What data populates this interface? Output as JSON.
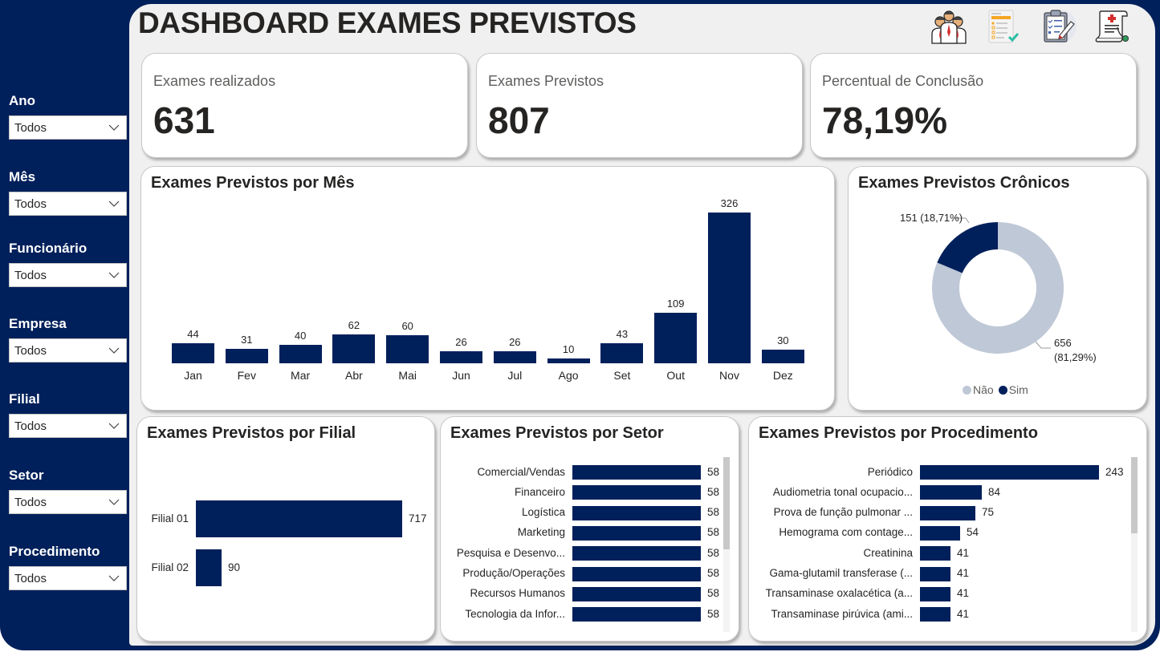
{
  "header": {
    "title": "DASHBOARD EXAMES PREVISTOS"
  },
  "header_icons": [
    "team-icon",
    "checklist-icon",
    "clipboard-edit-icon",
    "medical-report-icon"
  ],
  "filters": [
    {
      "label": "Ano",
      "value": "Todos"
    },
    {
      "label": "Mês",
      "value": "Todos"
    },
    {
      "label": "Funcionário",
      "value": "Todos"
    },
    {
      "label": "Empresa",
      "value": "Todos"
    },
    {
      "label": "Filial",
      "value": "Todos"
    },
    {
      "label": "Setor",
      "value": "Todos"
    },
    {
      "label": "Procedimento",
      "value": "Todos"
    }
  ],
  "kpis": [
    {
      "label": "Exames realizados",
      "value": "631"
    },
    {
      "label": "Exames Previstos",
      "value": "807"
    },
    {
      "label": "Percentual de Conclusão",
      "value": "78,19%"
    }
  ],
  "colors": {
    "primary": "#00205b",
    "secondary": "#bfc8d6",
    "canvas": "#f0f0f0"
  },
  "charts": {
    "mes": {
      "title": "Exames Previstos por Mês"
    },
    "cronicos": {
      "title": "Exames Previstos Crônicos",
      "label_sim": "151 (18,71%)",
      "label_nao_1": "656",
      "label_nao_2": "(81,29%)",
      "legend": [
        "Não",
        "Sim"
      ]
    },
    "filial": {
      "title": "Exames Previstos por Filial"
    },
    "setor": {
      "title": "Exames Previstos por Setor"
    },
    "procedimento": {
      "title": "Exames Previstos por Procedimento"
    }
  },
  "chart_data": [
    {
      "type": "bar",
      "title": "Exames Previstos por Mês",
      "categories": [
        "Jan",
        "Fev",
        "Mar",
        "Abr",
        "Mai",
        "Jun",
        "Jul",
        "Ago",
        "Set",
        "Out",
        "Nov",
        "Dez"
      ],
      "values": [
        44,
        31,
        40,
        62,
        60,
        26,
        26,
        10,
        43,
        109,
        326,
        30
      ],
      "xlabel": "",
      "ylabel": "",
      "grid": false
    },
    {
      "type": "pie",
      "title": "Exames Previstos Crônicos",
      "categories": [
        "Não",
        "Sim"
      ],
      "values": [
        656,
        151
      ],
      "percentages": [
        "81,29%",
        "18,71%"
      ],
      "donut": true,
      "legend_position": "bottom"
    },
    {
      "type": "bar",
      "orientation": "horizontal",
      "title": "Exames Previstos por Filial",
      "categories": [
        "Filial 01",
        "Filial 02"
      ],
      "values": [
        717,
        90
      ]
    },
    {
      "type": "bar",
      "orientation": "horizontal",
      "title": "Exames Previstos por Setor",
      "categories": [
        "Comercial/Vendas",
        "Financeiro",
        "Logística",
        "Marketing",
        "Pesquisa e Desenvo...",
        "Produção/Operações",
        "Recursos Humanos",
        "Tecnologia da Infor..."
      ],
      "values": [
        58,
        58,
        58,
        58,
        58,
        58,
        58,
        58
      ]
    },
    {
      "type": "bar",
      "orientation": "horizontal",
      "title": "Exames Previstos por Procedimento",
      "categories": [
        "Periódico",
        "Audiometria tonal ocupacio...",
        "Prova de função pulmonar ...",
        "Hemograma com contage...",
        "Creatinina",
        "Gama-glutamil transferase (...",
        "Transaminase oxalacética (a...",
        "Transaminase pirúvica (ami..."
      ],
      "values": [
        243,
        84,
        75,
        54,
        41,
        41,
        41,
        41
      ]
    }
  ]
}
